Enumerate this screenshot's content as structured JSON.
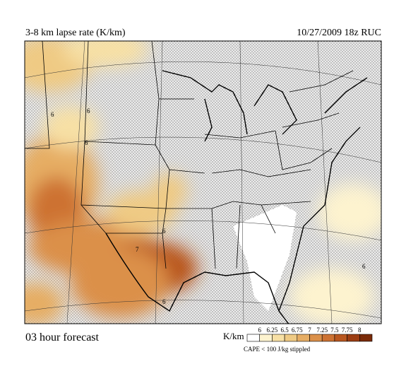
{
  "header": {
    "title": "3-8 km lapse rate (K/km)",
    "valid": "10/27/2009  18z  RUC"
  },
  "footer": {
    "forecast": "03 hour forecast"
  },
  "legend": {
    "unit": "K/km",
    "ticks": [
      6,
      6.25,
      6.5,
      6.75,
      7,
      7.25,
      7.5,
      7.75,
      8
    ],
    "colors": [
      "#ffffff",
      "#fdf3cf",
      "#f7e0a5",
      "#efca84",
      "#e6ad64",
      "#db9049",
      "#cd7232",
      "#b9571f",
      "#9c3d12",
      "#7a2a08"
    ],
    "note": "CAPE < 100 J/kg stippled"
  },
  "map": {
    "contour_labels": [
      "6",
      "6",
      "6",
      "7",
      "6",
      "6",
      "6"
    ]
  }
}
